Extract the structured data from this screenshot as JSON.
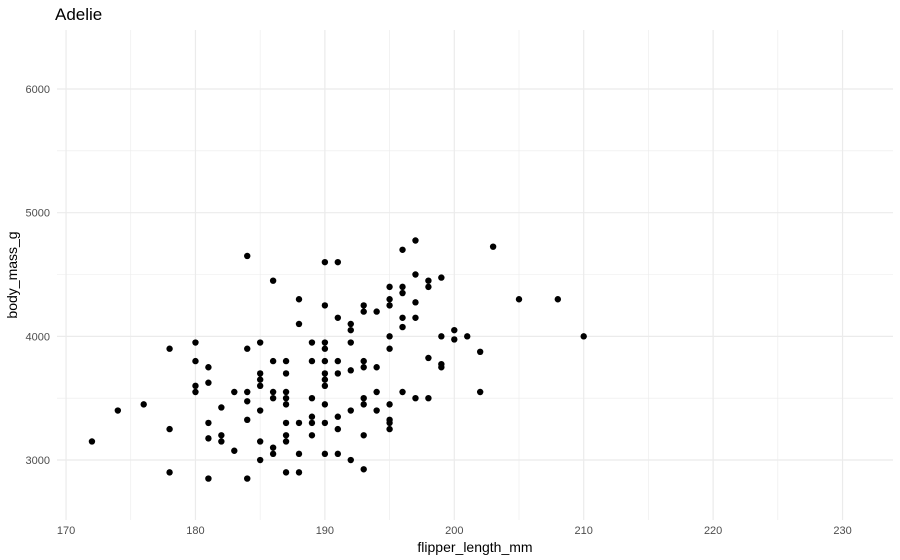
{
  "chart_data": {
    "type": "scatter",
    "title": "Adelie",
    "xlabel": "flipper_length_mm",
    "ylabel": "body_mass_g",
    "xlim": [
      169.3,
      233.9
    ],
    "ylim": [
      2515,
      6477
    ],
    "xticks": [
      170,
      180,
      190,
      200,
      210,
      220,
      230
    ],
    "yticks": [
      3000,
      4000,
      5000,
      6000
    ],
    "grid": true,
    "point_color": "#000000",
    "grid_color": "#ebebeb",
    "points": [
      [
        172,
        3150
      ],
      [
        174,
        3400
      ],
      [
        176,
        3450
      ],
      [
        178,
        3900
      ],
      [
        178,
        3250
      ],
      [
        178,
        2900
      ],
      [
        180,
        3950
      ],
      [
        180,
        3800
      ],
      [
        180,
        3600
      ],
      [
        180,
        3550
      ],
      [
        181,
        3750
      ],
      [
        181,
        3625
      ],
      [
        181,
        3300
      ],
      [
        181,
        3175
      ],
      [
        181,
        2850
      ],
      [
        182,
        3425
      ],
      [
        182,
        3200
      ],
      [
        182,
        3150
      ],
      [
        183,
        3550
      ],
      [
        183,
        3075
      ],
      [
        184,
        4650
      ],
      [
        184,
        3900
      ],
      [
        184,
        3550
      ],
      [
        184,
        3475
      ],
      [
        184,
        3325
      ],
      [
        184,
        2850
      ],
      [
        185,
        3950
      ],
      [
        185,
        3700
      ],
      [
        185,
        3650
      ],
      [
        185,
        3600
      ],
      [
        185,
        3400
      ],
      [
        185,
        3150
      ],
      [
        185,
        3000
      ],
      [
        186,
        4450
      ],
      [
        186,
        3800
      ],
      [
        186,
        3550
      ],
      [
        186,
        3500
      ],
      [
        186,
        3100
      ],
      [
        186,
        3050
      ],
      [
        187,
        3800
      ],
      [
        187,
        3700
      ],
      [
        187,
        3550
      ],
      [
        187,
        3500
      ],
      [
        187,
        3450
      ],
      [
        187,
        3300
      ],
      [
        187,
        3200
      ],
      [
        187,
        3150
      ],
      [
        187,
        2900
      ],
      [
        188,
        4300
      ],
      [
        188,
        4100
      ],
      [
        188,
        3300
      ],
      [
        188,
        3050
      ],
      [
        188,
        2900
      ],
      [
        189,
        3950
      ],
      [
        189,
        3800
      ],
      [
        189,
        3500
      ],
      [
        189,
        3350
      ],
      [
        189,
        3300
      ],
      [
        189,
        3200
      ],
      [
        190,
        4600
      ],
      [
        190,
        4250
      ],
      [
        190,
        3950
      ],
      [
        190,
        3900
      ],
      [
        190,
        3800
      ],
      [
        190,
        3700
      ],
      [
        190,
        3650
      ],
      [
        190,
        3600
      ],
      [
        190,
        3450
      ],
      [
        190,
        3300
      ],
      [
        190,
        3050
      ],
      [
        191,
        4600
      ],
      [
        191,
        4150
      ],
      [
        191,
        3800
      ],
      [
        191,
        3700
      ],
      [
        191,
        3350
      ],
      [
        191,
        3250
      ],
      [
        191,
        3050
      ],
      [
        192,
        4100
      ],
      [
        192,
        4050
      ],
      [
        192,
        3950
      ],
      [
        192,
        3725
      ],
      [
        192,
        3400
      ],
      [
        192,
        3000
      ],
      [
        193,
        4250
      ],
      [
        193,
        4200
      ],
      [
        193,
        3800
      ],
      [
        193,
        3750
      ],
      [
        193,
        3500
      ],
      [
        193,
        3450
      ],
      [
        193,
        3200
      ],
      [
        193,
        2925
      ],
      [
        194,
        4200
      ],
      [
        194,
        3750
      ],
      [
        194,
        3550
      ],
      [
        194,
        3400
      ],
      [
        195,
        4400
      ],
      [
        195,
        4300
      ],
      [
        195,
        4250
      ],
      [
        195,
        4000
      ],
      [
        195,
        3900
      ],
      [
        195,
        3450
      ],
      [
        195,
        3325
      ],
      [
        195,
        3300
      ],
      [
        195,
        3250
      ],
      [
        196,
        4700
      ],
      [
        196,
        4400
      ],
      [
        196,
        4350
      ],
      [
        196,
        4150
      ],
      [
        196,
        4075
      ],
      [
        196,
        3550
      ],
      [
        197,
        4775
      ],
      [
        197,
        4500
      ],
      [
        197,
        4275
      ],
      [
        197,
        4150
      ],
      [
        197,
        3500
      ],
      [
        198,
        4450
      ],
      [
        198,
        4400
      ],
      [
        198,
        3825
      ],
      [
        198,
        3500
      ],
      [
        199,
        4475
      ],
      [
        199,
        4000
      ],
      [
        199,
        3750
      ],
      [
        199,
        3775
      ],
      [
        200,
        4050
      ],
      [
        200,
        3975
      ],
      [
        201,
        4000
      ],
      [
        202,
        3875
      ],
      [
        202,
        3550
      ],
      [
        203,
        4725
      ],
      [
        205,
        4300
      ],
      [
        208,
        4300
      ],
      [
        210,
        4000
      ]
    ]
  }
}
